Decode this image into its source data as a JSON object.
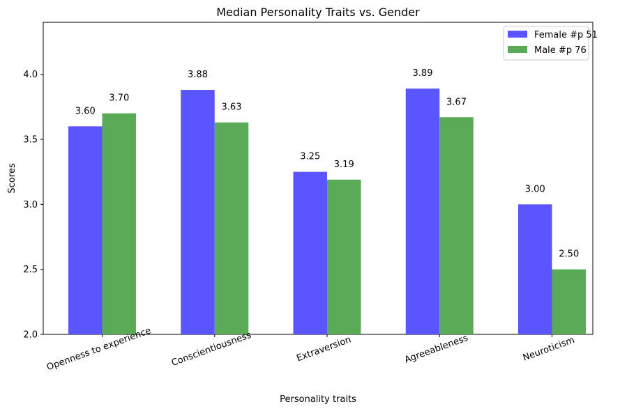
{
  "chart_data": {
    "type": "bar",
    "title": "Median Personality Traits vs. Gender",
    "xlabel": "Personality traits",
    "ylabel": "Scores",
    "categories": [
      "Openness to experience",
      "Conscientiousness",
      "Extraversion",
      "Agreeableness",
      "Neuroticism"
    ],
    "series": [
      {
        "name": "Female #p 51",
        "color": "#5a55ff",
        "values": [
          3.6,
          3.88,
          3.25,
          3.89,
          3.0
        ],
        "labels": [
          "3.60",
          "3.88",
          "3.25",
          "3.89",
          "3.00"
        ]
      },
      {
        "name": "Male #p 76",
        "color": "#5aaa58",
        "values": [
          3.7,
          3.63,
          3.19,
          3.67,
          2.5
        ],
        "labels": [
          "3.70",
          "3.63",
          "3.19",
          "3.67",
          "2.50"
        ]
      }
    ],
    "ylim": [
      2.0,
      4.4
    ],
    "yticks": [
      2.0,
      2.5,
      3.0,
      3.5,
      4.0
    ],
    "ytick_labels": [
      "2.0",
      "2.5",
      "3.0",
      "3.5",
      "4.0"
    ],
    "grid": false,
    "legend_position": "top-right"
  }
}
